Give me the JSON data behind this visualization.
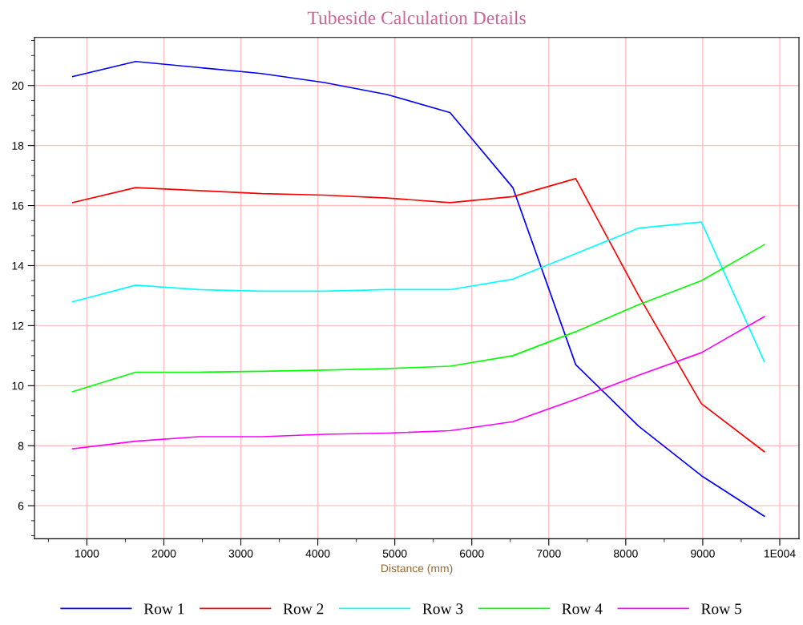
{
  "chart_data": {
    "type": "line",
    "title": "Tubeside Calculation Details",
    "xlabel": "Distance (mm)",
    "x": [
      817,
      1633,
      2450,
      3267,
      4083,
      4900,
      5717,
      6533,
      7350,
      8167,
      8983,
      9800
    ],
    "series": [
      {
        "name": "Row 1",
        "color": "#0000ff",
        "values": [
          20.3,
          20.8,
          20.6,
          20.4,
          20.1,
          19.7,
          19.1,
          16.6,
          10.7,
          8.65,
          7.0,
          5.65
        ]
      },
      {
        "name": "Row 2",
        "color": "#ff0000",
        "values": [
          16.1,
          16.6,
          16.5,
          16.4,
          16.35,
          16.25,
          16.1,
          16.3,
          16.9,
          13.0,
          9.4,
          7.8
        ]
      },
      {
        "name": "Row 3",
        "color": "#00ffff",
        "values": [
          12.8,
          13.35,
          13.2,
          13.15,
          13.15,
          13.2,
          13.2,
          13.55,
          14.4,
          15.25,
          15.45,
          10.8
        ]
      },
      {
        "name": "Row 4",
        "color": "#00ff00",
        "values": [
          9.8,
          10.45,
          10.45,
          10.48,
          10.52,
          10.57,
          10.65,
          11.0,
          11.8,
          12.7,
          13.5,
          14.7
        ]
      },
      {
        "name": "Row 5",
        "color": "#ff00ff",
        "values": [
          7.9,
          8.15,
          8.3,
          8.3,
          8.38,
          8.42,
          8.5,
          8.8,
          9.55,
          10.35,
          11.1,
          12.3
        ]
      }
    ],
    "xlim": [
      320,
      10250
    ],
    "ylim": [
      4.9,
      21.6
    ],
    "xticks": [
      1000,
      2000,
      3000,
      4000,
      5000,
      6000,
      7000,
      8000,
      9000,
      {
        "value": 10000,
        "label": "1E004"
      }
    ],
    "yticks": [
      6,
      8,
      10,
      12,
      14,
      16,
      18,
      20
    ],
    "grid": true,
    "legend": "bottom",
    "marker": "none",
    "line_style": "solid"
  }
}
